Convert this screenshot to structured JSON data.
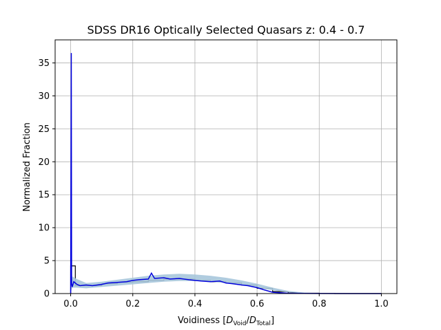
{
  "chart_data": {
    "type": "line",
    "title": "SDSS DR16 Optically Selected Quasars z: 0.4 - 0.7",
    "xlabel": {
      "prefix": "Voidiness [",
      "num": "D",
      "num_sub": "Void",
      "sep": "/",
      "den": "D",
      "den_sub": "Total",
      "suffix": "]"
    },
    "ylabel": "Normalized Fraction",
    "xlim": [
      -0.05,
      1.05
    ],
    "ylim": [
      0,
      38.5
    ],
    "xticks": [
      0.0,
      0.2,
      0.4,
      0.6,
      0.8,
      1.0
    ],
    "xtick_labels": [
      "0.0",
      "0.2",
      "0.4",
      "0.6",
      "0.8",
      "1.0"
    ],
    "yticks": [
      0,
      5,
      10,
      15,
      20,
      25,
      30,
      35
    ],
    "ytick_labels": [
      "0",
      "5",
      "10",
      "15",
      "20",
      "25",
      "30",
      "35"
    ],
    "grid": true,
    "colors": {
      "band": "#a7c6dc",
      "line": "#0000dd",
      "hist": "#000000",
      "grid": "#b0b0b0"
    },
    "series": [
      {
        "kind": "histogram",
        "x": [
          0.0,
          0.015,
          0.05,
          0.1,
          0.15,
          0.2,
          0.25,
          0.3,
          0.35,
          0.4,
          0.45,
          0.5,
          0.55,
          0.6,
          0.65,
          0.7,
          0.75,
          0.8,
          0.85,
          0.9,
          0.95,
          1.0
        ],
        "y": [
          4.2,
          1.2,
          1.2,
          1.5,
          1.7,
          1.8,
          2.0,
          2.2,
          2.2,
          2.0,
          1.8,
          1.6,
          1.3,
          0.8,
          0.3,
          0.1,
          0.05,
          0.02,
          0.0,
          0.0,
          0.0,
          0.0
        ]
      },
      {
        "kind": "band",
        "x": [
          0.0,
          0.005,
          0.02,
          0.05,
          0.1,
          0.15,
          0.2,
          0.25,
          0.3,
          0.35,
          0.4,
          0.45,
          0.5,
          0.55,
          0.6,
          0.65,
          0.7,
          0.75,
          0.8,
          0.85,
          1.0
        ],
        "low": [
          0.0,
          0.9,
          0.9,
          0.8,
          1.0,
          1.2,
          1.4,
          1.6,
          1.8,
          1.9,
          1.9,
          1.8,
          1.6,
          1.3,
          0.9,
          0.5,
          0.2,
          0.05,
          0.0,
          0.0,
          0.0
        ],
        "high": [
          0.0,
          2.6,
          2.2,
          1.6,
          1.8,
          2.1,
          2.4,
          2.7,
          2.9,
          3.0,
          2.9,
          2.7,
          2.4,
          2.0,
          1.5,
          0.9,
          0.4,
          0.15,
          0.05,
          0.02,
          0.0
        ]
      },
      {
        "kind": "line",
        "x": [
          0.0,
          0.002,
          0.003,
          0.005,
          0.01,
          0.02,
          0.03,
          0.05,
          0.07,
          0.1,
          0.12,
          0.15,
          0.18,
          0.2,
          0.22,
          0.25,
          0.26,
          0.27,
          0.3,
          0.32,
          0.35,
          0.38,
          0.4,
          0.42,
          0.45,
          0.48,
          0.5,
          0.52,
          0.55,
          0.57,
          0.6,
          0.62,
          0.65,
          0.68,
          0.7,
          0.75,
          0.8,
          0.9,
          1.0
        ],
        "y": [
          0.0,
          36.5,
          1.5,
          1.0,
          1.8,
          1.4,
          1.2,
          1.3,
          1.2,
          1.4,
          1.6,
          1.7,
          1.8,
          2.0,
          2.1,
          2.2,
          3.1,
          2.3,
          2.4,
          2.2,
          2.3,
          2.1,
          2.0,
          1.9,
          1.8,
          1.9,
          1.6,
          1.5,
          1.3,
          1.2,
          0.9,
          0.6,
          0.2,
          0.1,
          0.05,
          0.02,
          0.01,
          0.0,
          0.0
        ]
      }
    ]
  }
}
